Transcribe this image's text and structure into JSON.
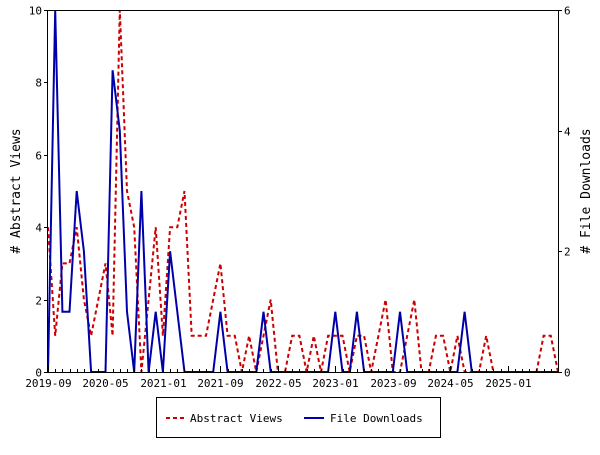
{
  "chart_data": {
    "type": "line",
    "title": "",
    "ylabel": "# Abstract Views",
    "y2label": "# File Downloads",
    "ylim": [
      0,
      10
    ],
    "y2lim": [
      0,
      6
    ],
    "yticks": [
      0,
      2,
      4,
      6,
      8,
      10
    ],
    "y2ticks": [
      0,
      2,
      4,
      6
    ],
    "xtick_labels": [
      "2019-09",
      "2020-05",
      "2021-01",
      "2021-09",
      "2022-05",
      "2023-01",
      "2023-09",
      "2024-05",
      "2025-01"
    ],
    "months": 72,
    "grid": false,
    "legend_position": "bottom-center",
    "colors": {
      "abstract_views": "#cc0000",
      "file_downloads": "#0000aa"
    },
    "series": [
      {
        "name": "Abstract Views",
        "axis": "left",
        "style": "dashed",
        "values": [
          4,
          1,
          3,
          3,
          4,
          2,
          1,
          2,
          3,
          1,
          10,
          5,
          4,
          0,
          2,
          4,
          1,
          4,
          4,
          5,
          1,
          1,
          1,
          2,
          3,
          1,
          1,
          0,
          1,
          0,
          1,
          2,
          0,
          0,
          1,
          1,
          0,
          1,
          0,
          1,
          1,
          1,
          0,
          1,
          1,
          0,
          1,
          2,
          0,
          0,
          1,
          2,
          0,
          0,
          1,
          1,
          0,
          1,
          0,
          0,
          0,
          1,
          0,
          0,
          0,
          0,
          0,
          0,
          0,
          1,
          1,
          0
        ]
      },
      {
        "name": "File Downloads",
        "axis": "right",
        "style": "solid",
        "values": [
          0,
          6,
          1,
          1,
          3,
          2,
          0,
          0,
          0,
          5,
          4,
          1,
          0,
          3,
          0,
          1,
          0,
          2,
          1,
          0,
          0,
          0,
          0,
          0,
          1,
          0,
          0,
          0,
          0,
          0,
          1,
          0,
          0,
          0,
          0,
          0,
          0,
          0,
          0,
          0,
          1,
          0,
          0,
          1,
          0,
          0,
          0,
          0,
          0,
          1,
          0,
          0,
          0,
          0,
          0,
          0,
          0,
          0,
          1,
          0,
          0,
          0,
          0,
          0,
          0,
          0,
          0,
          0,
          0,
          0,
          0,
          0
        ]
      }
    ]
  }
}
